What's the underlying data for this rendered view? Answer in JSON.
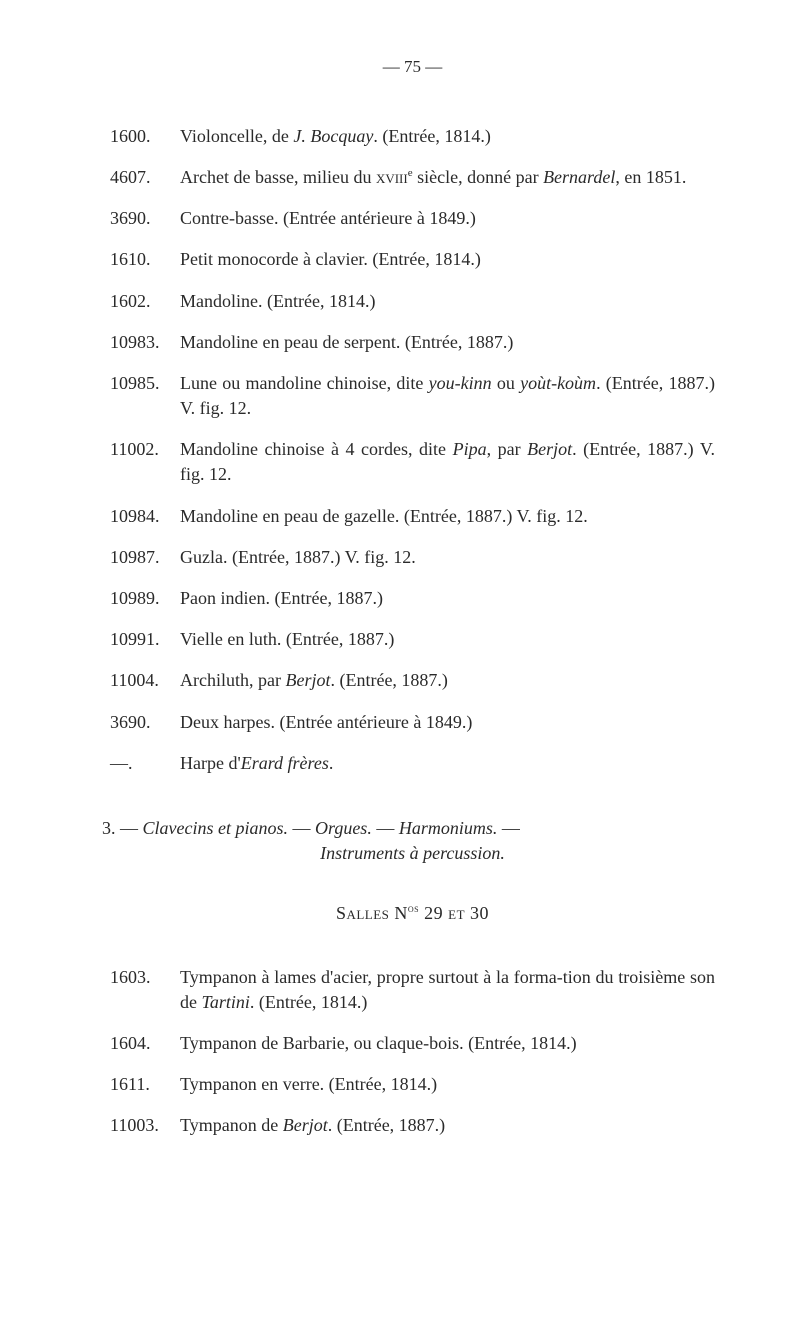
{
  "pageNumber": "— 75 —",
  "entries": [
    {
      "num": "1600.",
      "text": "Violoncelle, de <i>J. Bocquay</i>. (Entrée, 1814.)"
    },
    {
      "num": "4607.",
      "text": "Archet de basse, milieu du <span class=\"sc\">xviii</span><sup>e</sup> siècle, donné par <i>Bernardel</i>, en 1851."
    },
    {
      "num": "3690.",
      "text": "Contre-basse. (Entrée antérieure à 1849.)"
    },
    {
      "num": "1610.",
      "text": "Petit monocorde à clavier. (Entrée, 1814.)"
    },
    {
      "num": "1602.",
      "text": "Mandoline. (Entrée, 1814.)"
    },
    {
      "num": "10983.",
      "text": "Mandoline en peau de serpent. (Entrée, 1887.)"
    },
    {
      "num": "10985.",
      "text": "Lune ou mandoline chinoise, dite <i>you-kinn</i> ou <i>yoùt-koùm</i>. (Entrée, 1887.) V. fig. 12."
    },
    {
      "num": "11002.",
      "text": "Mandoline chinoise à 4 cordes, dite <i>Pipa</i>, par <i>Berjot</i>. (Entrée, 1887.) V. fig. 12."
    },
    {
      "num": "10984.",
      "text": "Mandoline en peau de gazelle. (Entrée, 1887.) V. fig. 12."
    },
    {
      "num": "10987.",
      "text": "Guzla. (Entrée, 1887.) V. fig. 12."
    },
    {
      "num": "10989.",
      "text": "Paon indien. (Entrée, 1887.)"
    },
    {
      "num": "10991.",
      "text": "Vielle en luth. (Entrée, 1887.)"
    },
    {
      "num": "11004.",
      "text": "Archiluth, par <i>Berjot</i>. (Entrée, 1887.)"
    },
    {
      "num": "3690.",
      "text": "Deux harpes. (Entrée antérieure à 1849.)"
    },
    {
      "num": "—.",
      "text": "Harpe d'<i>Erard frères</i>."
    }
  ],
  "sectionHeader": "3. — <i>Clavecins et pianos.</i> — <i>Orgues.</i> — <i>Harmoniums.</i> —",
  "sectionSub": "Instruments à percussion.",
  "sallesHeader": "Salles N<sup>os</sup> 29 et 30",
  "entries2": [
    {
      "num": "1603.",
      "text": "Tympanon à lames d'acier, propre surtout à la forma-tion du troisième son de <i>Tartini</i>. (Entrée, 1814.)"
    },
    {
      "num": "1604.",
      "text": "Tympanon de Barbarie, ou claque-bois. (Entrée, 1814.)"
    },
    {
      "num": "1611.",
      "text": "Tympanon en verre. (Entrée, 1814.)"
    },
    {
      "num": "11003.",
      "text": "Tympanon de <i>Berjot</i>. (Entrée, 1887.)"
    }
  ]
}
